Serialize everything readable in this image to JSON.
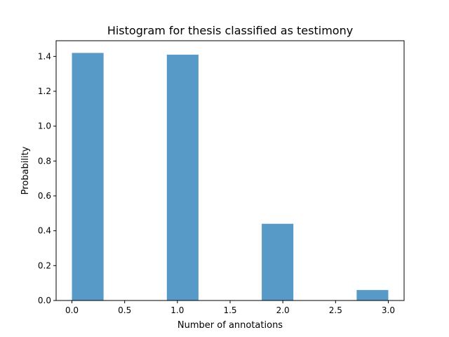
{
  "chart_data": {
    "type": "bar",
    "title": "Histogram for thesis classified as testimony",
    "xlabel": "Number of annotations",
    "ylabel": "Probability",
    "xlim": [
      -0.15,
      3.15
    ],
    "ylim": [
      0,
      1.49
    ],
    "xticks": [
      0.0,
      0.5,
      1.0,
      1.5,
      2.0,
      2.5,
      3.0
    ],
    "xtick_labels": [
      "0.0",
      "0.5",
      "1.0",
      "1.5",
      "2.0",
      "2.5",
      "3.0"
    ],
    "yticks": [
      0.0,
      0.2,
      0.4,
      0.6,
      0.8,
      1.0,
      1.2,
      1.4
    ],
    "ytick_labels": [
      "0.0",
      "0.2",
      "0.4",
      "0.6",
      "0.8",
      "1.0",
      "1.2",
      "1.4"
    ],
    "bins": [
      {
        "x0": 0.0,
        "x1": 0.3,
        "value": 1.42
      },
      {
        "x0": 0.3,
        "x1": 0.6,
        "value": 0.0
      },
      {
        "x0": 0.6,
        "x1": 0.9,
        "value": 0.0
      },
      {
        "x0": 0.9,
        "x1": 1.2,
        "value": 1.41
      },
      {
        "x0": 1.2,
        "x1": 1.5,
        "value": 0.0
      },
      {
        "x0": 1.5,
        "x1": 1.8,
        "value": 0.0
      },
      {
        "x0": 1.8,
        "x1": 2.1,
        "value": 0.44
      },
      {
        "x0": 2.1,
        "x1": 2.4,
        "value": 0.0
      },
      {
        "x0": 2.4,
        "x1": 2.7,
        "value": 0.0
      },
      {
        "x0": 2.7,
        "x1": 3.0,
        "value": 0.06
      }
    ],
    "bar_color": "#5799c7",
    "grid": false,
    "legend": "none"
  }
}
